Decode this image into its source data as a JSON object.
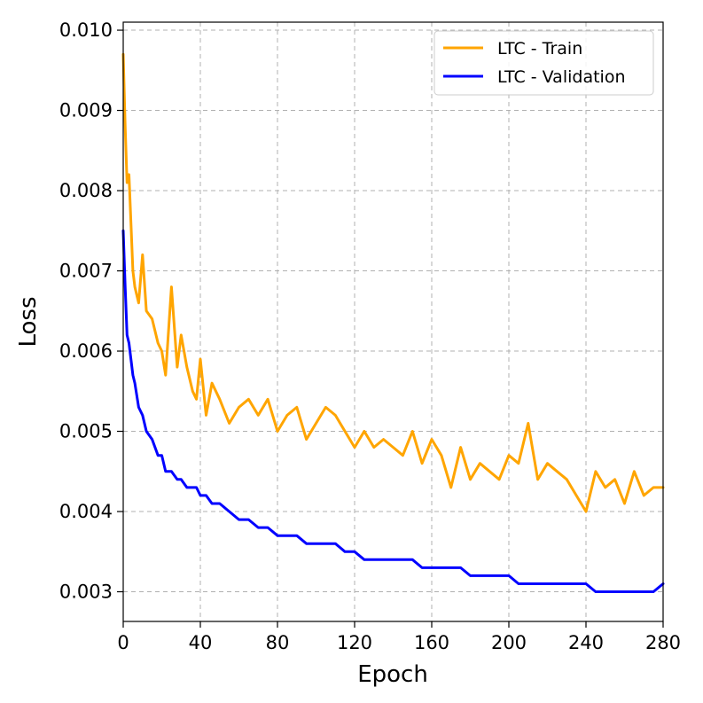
{
  "chart_data": {
    "type": "line",
    "title": "",
    "xlabel": "Epoch",
    "ylabel": "Loss",
    "xlim": [
      0,
      280
    ],
    "ylim": [
      0.00263,
      0.0101
    ],
    "xticks": [
      0,
      40,
      80,
      120,
      160,
      200,
      240,
      280
    ],
    "xtick_labels": [
      "0",
      "40",
      "80",
      "120",
      "160",
      "200",
      "240",
      "280"
    ],
    "yticks": [
      0.003,
      0.004,
      0.005,
      0.006,
      0.007,
      0.008,
      0.009,
      0.01
    ],
    "ytick_labels": [
      "0.003",
      "0.004",
      "0.005",
      "0.006",
      "0.007",
      "0.008",
      "0.009",
      "0.010"
    ],
    "grid": true,
    "legend_position": "top-right",
    "x": [
      0,
      1,
      2,
      3,
      4,
      5,
      6,
      8,
      10,
      12,
      15,
      18,
      20,
      22,
      25,
      28,
      30,
      33,
      36,
      38,
      40,
      43,
      46,
      50,
      55,
      60,
      65,
      70,
      75,
      80,
      85,
      90,
      95,
      100,
      105,
      110,
      115,
      120,
      125,
      130,
      135,
      140,
      145,
      150,
      155,
      160,
      165,
      170,
      175,
      180,
      185,
      190,
      195,
      200,
      205,
      210,
      215,
      220,
      225,
      230,
      235,
      240,
      245,
      250,
      255,
      260,
      265,
      270,
      275,
      280
    ],
    "series": [
      {
        "name": "LTC - Train",
        "color": "#FFA500",
        "values": [
          0.0097,
          0.0088,
          0.0081,
          0.0082,
          0.0076,
          0.007,
          0.0068,
          0.0066,
          0.0072,
          0.0065,
          0.0064,
          0.0061,
          0.006,
          0.0057,
          0.0068,
          0.0058,
          0.0062,
          0.0058,
          0.0055,
          0.0054,
          0.0059,
          0.0052,
          0.0056,
          0.0054,
          0.0051,
          0.0053,
          0.0054,
          0.0052,
          0.0054,
          0.005,
          0.0052,
          0.0053,
          0.0049,
          0.0051,
          0.0053,
          0.0052,
          0.005,
          0.0048,
          0.005,
          0.0048,
          0.0049,
          0.0048,
          0.0047,
          0.005,
          0.0046,
          0.0049,
          0.0047,
          0.0043,
          0.0048,
          0.0044,
          0.0046,
          0.0045,
          0.0044,
          0.0047,
          0.0046,
          0.0051,
          0.0044,
          0.0046,
          0.0045,
          0.0044,
          0.0042,
          0.004,
          0.0045,
          0.0043,
          0.0044,
          0.0041,
          0.0045,
          0.0042,
          0.0043,
          0.0043
        ]
      },
      {
        "name": "LTC - Validation",
        "color": "#0000FF",
        "values": [
          0.0075,
          0.0068,
          0.0062,
          0.0061,
          0.0059,
          0.0057,
          0.0056,
          0.0053,
          0.0052,
          0.005,
          0.0049,
          0.0047,
          0.0047,
          0.0045,
          0.0045,
          0.0044,
          0.0044,
          0.0043,
          0.0043,
          0.0043,
          0.0042,
          0.0042,
          0.0041,
          0.0041,
          0.004,
          0.0039,
          0.0039,
          0.0038,
          0.0038,
          0.0037,
          0.0037,
          0.0037,
          0.0036,
          0.0036,
          0.0036,
          0.0036,
          0.0035,
          0.0035,
          0.0034,
          0.0034,
          0.0034,
          0.0034,
          0.0034,
          0.0034,
          0.0033,
          0.0033,
          0.0033,
          0.0033,
          0.0033,
          0.0032,
          0.0032,
          0.0032,
          0.0032,
          0.0032,
          0.0031,
          0.0031,
          0.0031,
          0.0031,
          0.0031,
          0.0031,
          0.0031,
          0.0031,
          0.003,
          0.003,
          0.003,
          0.003,
          0.003,
          0.003,
          0.003,
          0.0031
        ]
      }
    ]
  }
}
